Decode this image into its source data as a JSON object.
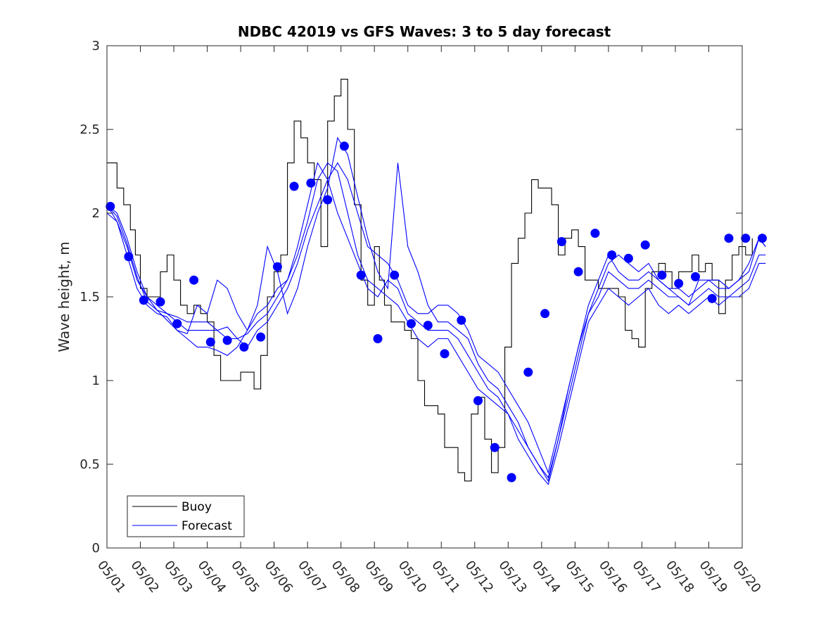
{
  "chart_data": {
    "type": "line",
    "title": "NDBC 42019 vs GFS Waves: 3 to 5 day forecast",
    "xlabel": "",
    "ylabel": "Wave height, m",
    "xlim": [
      "05/01",
      "05/20"
    ],
    "ylim": [
      0,
      3
    ],
    "x_tick_labels": [
      "05/01",
      "05/02",
      "05/03",
      "05/04",
      "05/05",
      "05/06",
      "05/07",
      "05/08",
      "05/09",
      "05/10",
      "05/11",
      "05/12",
      "05/13",
      "05/14",
      "05/15",
      "05/16",
      "05/17",
      "05/18",
      "05/19",
      "05/20"
    ],
    "y_tick_labels": [
      "0",
      "0.5",
      "1",
      "1.5",
      "2",
      "2.5",
      "3"
    ],
    "legend": {
      "placement": "bottom-left",
      "entries": [
        {
          "name": "Buoy",
          "color": "#000000"
        },
        {
          "name": "Forecast",
          "color": "#0000ff"
        }
      ]
    },
    "series": [
      {
        "name": "Buoy",
        "style": "line",
        "color": "#000000",
        "x_days": [
          0.0,
          0.15,
          0.3,
          0.5,
          0.7,
          0.85,
          1.0,
          1.2,
          1.4,
          1.6,
          1.8,
          2.0,
          2.2,
          2.4,
          2.6,
          2.8,
          3.0,
          3.2,
          3.4,
          3.6,
          3.8,
          4.0,
          4.2,
          4.4,
          4.6,
          4.8,
          5.0,
          5.2,
          5.4,
          5.6,
          5.8,
          6.0,
          6.2,
          6.4,
          6.6,
          6.8,
          7.0,
          7.2,
          7.4,
          7.6,
          7.8,
          8.0,
          8.15,
          8.3,
          8.5,
          8.7,
          8.9,
          9.1,
          9.3,
          9.5,
          9.7,
          9.9,
          10.1,
          10.3,
          10.5,
          10.7,
          10.9,
          11.1,
          11.3,
          11.5,
          11.7,
          11.9,
          12.1,
          12.3,
          12.5,
          12.7,
          12.9,
          13.1,
          13.3,
          13.5,
          13.7,
          13.9,
          14.1,
          14.3,
          14.5,
          14.7,
          14.9,
          15.1,
          15.3,
          15.5,
          15.7,
          15.9,
          16.1,
          16.3,
          16.5,
          16.7,
          16.9,
          17.1,
          17.3,
          17.5,
          17.7,
          17.9,
          18.1,
          18.3,
          18.5,
          18.7,
          18.9,
          19.1,
          19.3
        ],
        "values": [
          2.3,
          2.3,
          2.15,
          2.05,
          1.9,
          1.75,
          1.55,
          1.5,
          1.5,
          1.65,
          1.75,
          1.6,
          1.45,
          1.4,
          1.45,
          1.4,
          1.35,
          1.15,
          1.0,
          1.0,
          1.0,
          1.05,
          1.05,
          0.95,
          1.15,
          1.5,
          1.65,
          1.75,
          2.3,
          2.55,
          2.45,
          2.3,
          2.2,
          1.8,
          2.55,
          2.7,
          2.8,
          2.5,
          2.05,
          1.6,
          1.45,
          1.8,
          1.6,
          1.45,
          1.35,
          1.35,
          1.3,
          1.25,
          1.0,
          0.85,
          0.85,
          0.8,
          0.6,
          0.6,
          0.45,
          0.4,
          0.8,
          0.9,
          0.65,
          0.45,
          0.6,
          1.2,
          1.7,
          1.85,
          2.0,
          2.2,
          2.15,
          2.15,
          2.05,
          1.75,
          1.85,
          1.9,
          1.8,
          1.6,
          1.6,
          1.55,
          1.55,
          1.55,
          1.5,
          1.3,
          1.25,
          1.2,
          1.55,
          1.65,
          1.7,
          1.65,
          1.55,
          1.65,
          1.65,
          1.75,
          1.65,
          1.7,
          1.6,
          1.4,
          1.6,
          1.75,
          1.8,
          1.75,
          1.85
        ]
      },
      {
        "name": "Forecast",
        "style": "lines",
        "color": "#0000ff",
        "members": [
          {
            "x_days": [
              0.0,
              0.3,
              0.6,
              0.9,
              1.2,
              1.5,
              1.8,
              2.1,
              2.4,
              2.7,
              3.0,
              3.3,
              3.6,
              3.9,
              4.2,
              4.5,
              4.8,
              5.1,
              5.4,
              5.7,
              6.0,
              6.3,
              6.6,
              6.9,
              7.2,
              7.5,
              7.8,
              8.1,
              8.4,
              8.7,
              9.0,
              9.3,
              9.6,
              9.9,
              10.2,
              10.5,
              10.8,
              11.1,
              11.4,
              11.7,
              12.0,
              12.3,
              12.6,
              12.9,
              13.2,
              13.5,
              13.8,
              14.1,
              14.4,
              14.7,
              15.0,
              15.3,
              15.6,
              15.9,
              16.2,
              16.5,
              16.8,
              17.1,
              17.4,
              17.7,
              18.0,
              18.3,
              18.6,
              18.9,
              19.2,
              19.5,
              19.7
            ],
            "values": [
              2.05,
              2.0,
              1.85,
              1.65,
              1.5,
              1.45,
              1.4,
              1.35,
              1.3,
              1.3,
              1.3,
              1.3,
              1.32,
              1.25,
              1.2,
              1.3,
              1.35,
              1.45,
              1.55,
              1.7,
              1.9,
              2.05,
              2.2,
              2.3,
              2.2,
              2.0,
              1.8,
              1.75,
              1.7,
              1.6,
              1.45,
              1.4,
              1.4,
              1.45,
              1.45,
              1.4,
              1.3,
              1.15,
              1.1,
              1.05,
              0.95,
              0.85,
              0.75,
              0.6,
              0.45,
              0.7,
              0.95,
              1.2,
              1.45,
              1.6,
              1.75,
              1.65,
              1.6,
              1.6,
              1.65,
              1.6,
              1.55,
              1.5,
              1.45,
              1.6,
              1.6,
              1.55,
              1.55,
              1.6,
              1.7,
              1.85,
              1.8
            ]
          },
          {
            "x_days": [
              0.0,
              0.3,
              0.6,
              0.9,
              1.2,
              1.5,
              1.8,
              2.1,
              2.4,
              2.7,
              3.0,
              3.3,
              3.6,
              3.9,
              4.2,
              4.5,
              4.8,
              5.1,
              5.4,
              5.7,
              6.0,
              6.3,
              6.6,
              6.9,
              7.2,
              7.5,
              7.8,
              8.1,
              8.4,
              8.7,
              9.0,
              9.3,
              9.6,
              9.9,
              10.2,
              10.5,
              10.8,
              11.1,
              11.4,
              11.7,
              12.0,
              12.3,
              12.6,
              12.9,
              13.2,
              13.5,
              13.8,
              14.1,
              14.4,
              14.7,
              15.0,
              15.3,
              15.6,
              15.9,
              16.2,
              16.5,
              16.8,
              17.1,
              17.4,
              17.7,
              18.0,
              18.3,
              18.6,
              18.9,
              19.2,
              19.5,
              19.7
            ],
            "values": [
              2.05,
              1.95,
              1.75,
              1.55,
              1.45,
              1.4,
              1.38,
              1.3,
              1.25,
              1.2,
              1.2,
              1.18,
              1.15,
              1.2,
              1.3,
              1.4,
              1.45,
              1.55,
              1.6,
              1.75,
              1.95,
              2.2,
              2.3,
              2.25,
              2.0,
              1.75,
              1.6,
              1.55,
              1.5,
              1.45,
              1.35,
              1.25,
              1.2,
              1.25,
              1.25,
              1.15,
              1.05,
              0.95,
              0.9,
              0.85,
              0.8,
              0.7,
              0.6,
              0.5,
              0.4,
              0.65,
              0.9,
              1.15,
              1.4,
              1.5,
              1.65,
              1.6,
              1.55,
              1.55,
              1.6,
              1.55,
              1.5,
              1.5,
              1.45,
              1.5,
              1.55,
              1.5,
              1.5,
              1.55,
              1.6,
              1.75,
              1.75
            ]
          },
          {
            "x_days": [
              0.0,
              0.3,
              0.6,
              0.9,
              1.2,
              1.5,
              1.8,
              2.1,
              2.4,
              2.7,
              3.0,
              3.3,
              3.6,
              3.9,
              4.2,
              4.5,
              4.8,
              5.1,
              5.4,
              5.7,
              6.0,
              6.3,
              6.6,
              6.9,
              7.2,
              7.5,
              7.8,
              8.1,
              8.4,
              8.7,
              9.0,
              9.3,
              9.6,
              9.9,
              10.2,
              10.5,
              10.8,
              11.1,
              11.4,
              11.7,
              12.0,
              12.3,
              12.6,
              12.9,
              13.2,
              13.5,
              13.8,
              14.1,
              14.4,
              14.7,
              15.0,
              15.3,
              15.6,
              15.9,
              16.2,
              16.5,
              16.8,
              17.1,
              17.4,
              17.7,
              18.0,
              18.3,
              18.6,
              18.9,
              19.2,
              19.5,
              19.7
            ],
            "values": [
              2.0,
              1.95,
              1.8,
              1.6,
              1.5,
              1.42,
              1.4,
              1.38,
              1.35,
              1.35,
              1.35,
              1.3,
              1.25,
              1.25,
              1.28,
              1.35,
              1.4,
              1.5,
              1.6,
              1.8,
              2.05,
              2.3,
              2.2,
              2.0,
              1.85,
              1.7,
              1.55,
              1.5,
              1.6,
              1.55,
              1.4,
              1.35,
              1.3,
              1.3,
              1.3,
              1.25,
              1.15,
              1.05,
              0.95,
              0.9,
              0.8,
              0.65,
              0.55,
              0.45,
              0.38,
              0.6,
              0.85,
              1.1,
              1.35,
              1.45,
              1.55,
              1.5,
              1.45,
              1.5,
              1.55,
              1.45,
              1.4,
              1.45,
              1.4,
              1.45,
              1.5,
              1.45,
              1.5,
              1.5,
              1.55,
              1.7,
              1.7
            ]
          },
          {
            "x_days": [
              0.0,
              0.3,
              0.6,
              0.9,
              1.2,
              1.5,
              1.8,
              2.1,
              2.4,
              2.7,
              3.0,
              3.3,
              3.6,
              3.9,
              4.2,
              4.5,
              4.8,
              5.1,
              5.4,
              5.7,
              6.0,
              6.3,
              6.6,
              6.9,
              7.2,
              7.5,
              7.8,
              8.1,
              8.4,
              8.7,
              9.0,
              9.3,
              9.6,
              9.9,
              10.2,
              10.5,
              10.8,
              11.1,
              11.4,
              11.7,
              12.0,
              12.3,
              12.6,
              12.9,
              13.2,
              13.5,
              13.8,
              14.1,
              14.4,
              14.7,
              15.0,
              15.3,
              15.6,
              15.9,
              16.2,
              16.5,
              16.8,
              17.1,
              17.4,
              17.7,
              18.0,
              18.3,
              18.6,
              18.9,
              19.2,
              19.5,
              19.7
            ],
            "values": [
              2.05,
              1.98,
              1.82,
              1.62,
              1.47,
              1.42,
              1.36,
              1.3,
              1.28,
              1.45,
              1.4,
              1.6,
              1.55,
              1.4,
              1.3,
              1.45,
              1.8,
              1.65,
              1.4,
              1.55,
              1.8,
              2.0,
              2.15,
              2.45,
              2.35,
              2.1,
              1.85,
              1.65,
              1.55,
              2.3,
              1.8,
              1.65,
              1.45,
              1.35,
              1.35,
              1.3,
              1.25,
              1.1,
              1.0,
              0.95,
              0.85,
              0.75,
              0.6,
              0.5,
              0.42,
              0.65,
              0.95,
              1.2,
              1.4,
              1.55,
              1.7,
              1.75,
              1.7,
              1.65,
              1.7,
              1.6,
              1.55,
              1.55,
              1.5,
              1.55,
              1.6,
              1.6,
              1.55,
              1.6,
              1.65,
              1.85,
              1.8
            ]
          }
        ]
      },
      {
        "name": "",
        "style": "markers",
        "color": "#0000ff",
        "x_days": [
          0.1,
          0.65,
          1.1,
          1.6,
          2.1,
          2.6,
          3.1,
          3.6,
          4.1,
          4.6,
          5.1,
          5.6,
          6.1,
          6.6,
          7.1,
          7.6,
          8.1,
          8.6,
          9.1,
          9.6,
          10.1,
          10.6,
          11.1,
          11.6,
          12.1,
          12.6,
          13.1,
          13.6,
          14.1,
          14.6,
          15.1,
          15.6,
          16.1,
          16.6,
          17.1,
          17.6,
          18.1,
          18.6,
          19.1,
          19.6
        ],
        "values": [
          2.04,
          1.74,
          1.48,
          1.47,
          1.34,
          1.6,
          1.23,
          1.24,
          1.2,
          1.26,
          1.68,
          2.16,
          2.18,
          2.08,
          2.4,
          1.63,
          1.25,
          1.63,
          1.34,
          1.33,
          1.16,
          1.36,
          0.88,
          0.6,
          0.42,
          1.05,
          1.4,
          1.83,
          1.65,
          1.88,
          1.75,
          1.73,
          1.81,
          1.63,
          1.58,
          1.62,
          1.49,
          1.85,
          1.85,
          1.85
        ]
      }
    ]
  }
}
